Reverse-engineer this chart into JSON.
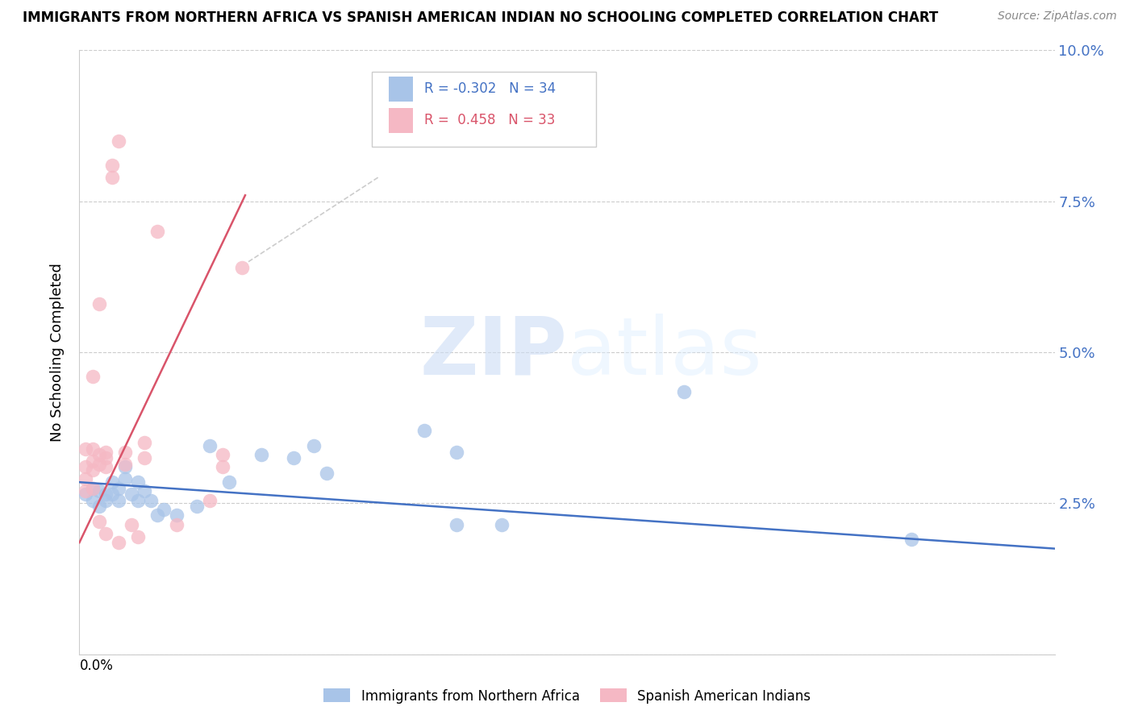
{
  "title": "IMMIGRANTS FROM NORTHERN AFRICA VS SPANISH AMERICAN INDIAN NO SCHOOLING COMPLETED CORRELATION CHART",
  "source": "Source: ZipAtlas.com",
  "ylabel": "No Schooling Completed",
  "ytick_labels": [
    "",
    "2.5%",
    "5.0%",
    "7.5%",
    "10.0%"
  ],
  "ytick_values": [
    0.0,
    0.025,
    0.05,
    0.075,
    0.1
  ],
  "xlim": [
    0.0,
    0.15
  ],
  "ylim": [
    0.0,
    0.1
  ],
  "blue_R": "-0.302",
  "blue_N": "34",
  "pink_R": "0.458",
  "pink_N": "33",
  "blue_color": "#a8c4e8",
  "pink_color": "#f5b8c4",
  "blue_line_color": "#4472c4",
  "pink_line_color": "#d9546a",
  "watermark_zip": "ZIP",
  "watermark_atlas": "atlas",
  "legend_label_blue": "Immigrants from Northern Africa",
  "legend_label_pink": "Spanish American Indians",
  "blue_scatter": [
    [
      0.001,
      0.0265
    ],
    [
      0.002,
      0.0275
    ],
    [
      0.002,
      0.0255
    ],
    [
      0.003,
      0.027
    ],
    [
      0.003,
      0.0245
    ],
    [
      0.004,
      0.0265
    ],
    [
      0.004,
      0.0255
    ],
    [
      0.005,
      0.0285
    ],
    [
      0.005,
      0.0265
    ],
    [
      0.006,
      0.0275
    ],
    [
      0.006,
      0.0255
    ],
    [
      0.007,
      0.031
    ],
    [
      0.007,
      0.029
    ],
    [
      0.008,
      0.0265
    ],
    [
      0.009,
      0.0255
    ],
    [
      0.009,
      0.0285
    ],
    [
      0.01,
      0.027
    ],
    [
      0.011,
      0.0255
    ],
    [
      0.012,
      0.023
    ],
    [
      0.013,
      0.024
    ],
    [
      0.015,
      0.023
    ],
    [
      0.018,
      0.0245
    ],
    [
      0.02,
      0.0345
    ],
    [
      0.023,
      0.0285
    ],
    [
      0.028,
      0.033
    ],
    [
      0.033,
      0.0325
    ],
    [
      0.036,
      0.0345
    ],
    [
      0.038,
      0.03
    ],
    [
      0.053,
      0.037
    ],
    [
      0.058,
      0.0335
    ],
    [
      0.058,
      0.0215
    ],
    [
      0.065,
      0.0215
    ],
    [
      0.093,
      0.0435
    ],
    [
      0.128,
      0.019
    ]
  ],
  "pink_scatter": [
    [
      0.001,
      0.034
    ],
    [
      0.001,
      0.031
    ],
    [
      0.001,
      0.029
    ],
    [
      0.001,
      0.027
    ],
    [
      0.002,
      0.046
    ],
    [
      0.002,
      0.034
    ],
    [
      0.002,
      0.032
    ],
    [
      0.002,
      0.0305
    ],
    [
      0.002,
      0.0275
    ],
    [
      0.003,
      0.058
    ],
    [
      0.003,
      0.033
    ],
    [
      0.003,
      0.0315
    ],
    [
      0.003,
      0.022
    ],
    [
      0.004,
      0.0335
    ],
    [
      0.004,
      0.0325
    ],
    [
      0.004,
      0.031
    ],
    [
      0.004,
      0.02
    ],
    [
      0.005,
      0.081
    ],
    [
      0.005,
      0.079
    ],
    [
      0.006,
      0.085
    ],
    [
      0.006,
      0.0185
    ],
    [
      0.007,
      0.0335
    ],
    [
      0.007,
      0.0315
    ],
    [
      0.008,
      0.0215
    ],
    [
      0.009,
      0.0195
    ],
    [
      0.01,
      0.035
    ],
    [
      0.01,
      0.0325
    ],
    [
      0.012,
      0.07
    ],
    [
      0.015,
      0.0215
    ],
    [
      0.02,
      0.0255
    ],
    [
      0.022,
      0.033
    ],
    [
      0.022,
      0.031
    ],
    [
      0.025,
      0.064
    ]
  ],
  "blue_trend_x": [
    0.0,
    0.15
  ],
  "blue_trend_y": [
    0.0285,
    0.0175
  ],
  "pink_trend_x": [
    0.0,
    0.0255
  ],
  "pink_trend_y": [
    0.0185,
    0.076
  ],
  "diag_line_x": [
    0.026,
    0.046
  ],
  "diag_line_y": [
    0.065,
    0.079
  ]
}
